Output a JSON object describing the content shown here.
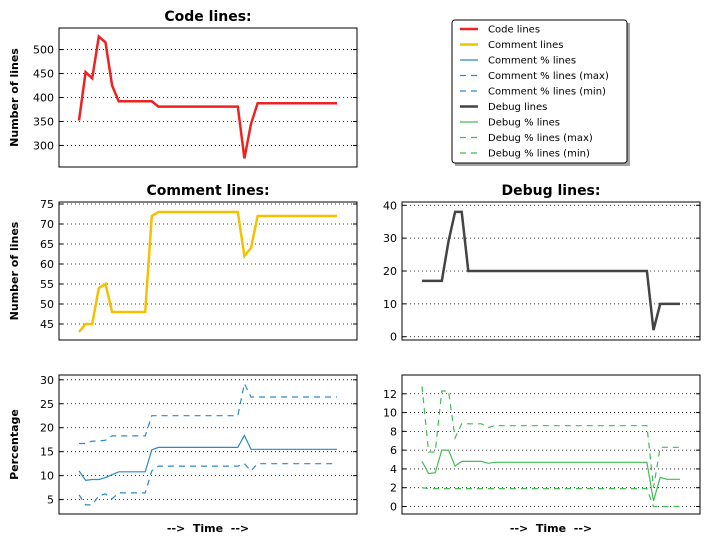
{
  "legend": {
    "entries": [
      {
        "label": "Code lines",
        "color": "#ee2222",
        "style": "solid",
        "width": 2.5
      },
      {
        "label": "Comment lines",
        "color": "#f5c000",
        "style": "solid",
        "width": 2.5
      },
      {
        "label": "Comment % lines",
        "color": "#2b8ac8",
        "style": "solid",
        "width": 1.2
      },
      {
        "label": "Comment % lines (max)",
        "color": "#2b8ac8",
        "style": "dashed",
        "width": 1.2
      },
      {
        "label": "Comment % lines (min)",
        "color": "#2b8ac8",
        "style": "dashed",
        "width": 1.2
      },
      {
        "label": "Debug lines",
        "color": "#444444",
        "style": "solid",
        "width": 2.5
      },
      {
        "label": "Debug % lines",
        "color": "#44bb55",
        "style": "solid",
        "width": 1.2
      },
      {
        "label": "Debug % lines (max)",
        "color": "#44bb55",
        "style": "dashed",
        "width": 1.2
      },
      {
        "label": "Debug % lines (min)",
        "color": "#44bb55",
        "style": "dashed",
        "width": 1.2
      }
    ]
  },
  "chart_data": [
    {
      "id": "code",
      "type": "line",
      "title": "Code lines:",
      "ylabel": "Number of lines",
      "xlabel": "",
      "ylim": [
        255,
        545
      ],
      "yticks": [
        300,
        350,
        400,
        450,
        500
      ],
      "grid": "horizontal dotted",
      "x": [
        0,
        1,
        2,
        3,
        4,
        5,
        6,
        7,
        8,
        9,
        10,
        11,
        12,
        13,
        14,
        15,
        16,
        17,
        18,
        19,
        20,
        21,
        22,
        23,
        24,
        25,
        26,
        27,
        28,
        29,
        30,
        31,
        32,
        33,
        34,
        35,
        36,
        37,
        38,
        39
      ],
      "series": [
        {
          "name": "Code lines",
          "color": "#ee2222",
          "style": "solid",
          "values": [
            352,
            453,
            440,
            527,
            515,
            425,
            392,
            392,
            392,
            392,
            392,
            392,
            381,
            381,
            381,
            381,
            381,
            381,
            381,
            381,
            381,
            381,
            381,
            381,
            381,
            273,
            345,
            388,
            388,
            388,
            388,
            388,
            388,
            388,
            388,
            388,
            388,
            388,
            388,
            388
          ]
        }
      ]
    },
    {
      "id": "comment",
      "type": "line",
      "title": "Comment lines:",
      "ylabel": "Number of lines",
      "xlabel": "",
      "ylim": [
        41,
        75.5
      ],
      "yticks": [
        45,
        50,
        55,
        60,
        65,
        70,
        75
      ],
      "grid": "horizontal dotted",
      "x": [
        0,
        1,
        2,
        3,
        4,
        5,
        6,
        7,
        8,
        9,
        10,
        11,
        12,
        13,
        14,
        15,
        16,
        17,
        18,
        19,
        20,
        21,
        22,
        23,
        24,
        25,
        26,
        27,
        28,
        29,
        30,
        31,
        32,
        33,
        34,
        35,
        36,
        37,
        38,
        39
      ],
      "series": [
        {
          "name": "Comment lines",
          "color": "#f5c000",
          "style": "solid",
          "values": [
            43,
            45,
            45,
            54,
            55,
            48,
            48,
            48,
            48,
            48,
            48,
            72,
            73,
            73,
            73,
            73,
            73,
            73,
            73,
            73,
            73,
            73,
            73,
            73,
            73,
            62,
            64,
            72,
            72,
            72,
            72,
            72,
            72,
            72,
            72,
            72,
            72,
            72,
            72,
            72
          ]
        }
      ]
    },
    {
      "id": "commentpct",
      "type": "line",
      "title": "",
      "ylabel": "Percentage",
      "xlabel": "-->  Time  -->",
      "ylim": [
        2,
        31
      ],
      "yticks": [
        5,
        10,
        15,
        20,
        25,
        30
      ],
      "grid": "horizontal dotted",
      "x": [
        0,
        1,
        2,
        3,
        4,
        5,
        6,
        7,
        8,
        9,
        10,
        11,
        12,
        13,
        14,
        15,
        16,
        17,
        18,
        19,
        20,
        21,
        22,
        23,
        24,
        25,
        26,
        27,
        28,
        29,
        30,
        31,
        32,
        33,
        34,
        35,
        36,
        37,
        38,
        39
      ],
      "series": [
        {
          "name": "Comment % lines",
          "color": "#2b8ac8",
          "style": "solid",
          "values": [
            11,
            9,
            9.2,
            9.2,
            9.6,
            10.2,
            10.8,
            10.8,
            10.8,
            10.8,
            10.8,
            15.4,
            15.9,
            15.9,
            15.9,
            15.9,
            15.9,
            15.9,
            15.9,
            15.9,
            15.9,
            15.9,
            15.9,
            15.9,
            15.9,
            18.4,
            15.5,
            15.5,
            15.5,
            15.5,
            15.5,
            15.5,
            15.5,
            15.5,
            15.5,
            15.5,
            15.5,
            15.5,
            15.5,
            15.5
          ]
        },
        {
          "name": "Comment % lines (max)",
          "color": "#2b8ac8",
          "style": "dashed",
          "values": [
            16.7,
            16.7,
            17.2,
            17.2,
            17.4,
            18.3,
            18.3,
            18.3,
            18.3,
            18.3,
            18.3,
            22.5,
            22.5,
            22.5,
            22.5,
            22.5,
            22.5,
            22.5,
            22.5,
            22.5,
            22.5,
            22.5,
            22.5,
            22.5,
            22.5,
            29.2,
            26.4,
            26.4,
            26.4,
            26.4,
            26.4,
            26.4,
            26.4,
            26.4,
            26.4,
            26.4,
            26.4,
            26.4,
            26.4,
            26.4
          ]
        },
        {
          "name": "Comment % lines (min)",
          "color": "#2b8ac8",
          "style": "dashed",
          "values": [
            6,
            3.9,
            3.9,
            5.8,
            6.2,
            5.2,
            6.4,
            6.4,
            6.4,
            6.4,
            6.4,
            11,
            12,
            12,
            12,
            12,
            12,
            12,
            12,
            12,
            12,
            12,
            12,
            12,
            12,
            12.5,
            11,
            12.5,
            12.5,
            12.5,
            12.5,
            12.5,
            12.5,
            12.5,
            12.5,
            12.5,
            12.5,
            12.5,
            12.5,
            12.5
          ]
        }
      ]
    },
    {
      "id": "debug",
      "type": "line",
      "title": "Debug lines:",
      "ylabel": "",
      "xlabel": "",
      "ylim": [
        -1,
        41
      ],
      "yticks": [
        0,
        10,
        20,
        30,
        40
      ],
      "grid": "horizontal dotted",
      "x": [
        0,
        1,
        2,
        3,
        4,
        5,
        6,
        7,
        8,
        9,
        10,
        11,
        12,
        13,
        14,
        15,
        16,
        17,
        18,
        19,
        20,
        21,
        22,
        23,
        24,
        25,
        26,
        27,
        28,
        29,
        30,
        31,
        32,
        33,
        34,
        35,
        36,
        37,
        38,
        39
      ],
      "series": [
        {
          "name": "Debug lines",
          "color": "#444444",
          "style": "solid",
          "values": [
            17,
            17,
            17,
            17,
            29,
            38,
            38,
            20,
            20,
            20,
            20,
            20,
            20,
            20,
            20,
            20,
            20,
            20,
            20,
            20,
            20,
            20,
            20,
            20,
            20,
            20,
            20,
            20,
            20,
            20,
            20,
            20,
            20,
            20,
            20,
            2,
            10,
            10,
            10,
            10
          ]
        }
      ]
    },
    {
      "id": "debugpct",
      "type": "line",
      "title": "",
      "ylabel": "",
      "xlabel": "-->  Time  -->",
      "ylim": [
        -0.8,
        14
      ],
      "yticks": [
        0,
        2,
        4,
        6,
        8,
        10,
        12
      ],
      "grid": "horizontal dotted",
      "x": [
        0,
        1,
        2,
        3,
        4,
        5,
        6,
        7,
        8,
        9,
        10,
        11,
        12,
        13,
        14,
        15,
        16,
        17,
        18,
        19,
        20,
        21,
        22,
        23,
        24,
        25,
        26,
        27,
        28,
        29,
        30,
        31,
        32,
        33,
        34,
        35,
        36,
        37,
        38,
        39
      ],
      "series": [
        {
          "name": "Debug % lines",
          "color": "#44bb55",
          "style": "solid",
          "values": [
            4.8,
            3.5,
            3.6,
            6,
            6,
            4.3,
            4.8,
            4.8,
            4.8,
            4.8,
            4.6,
            4.7,
            4.7,
            4.7,
            4.7,
            4.7,
            4.7,
            4.7,
            4.7,
            4.7,
            4.7,
            4.7,
            4.7,
            4.7,
            4.7,
            4.7,
            4.7,
            4.7,
            4.7,
            4.7,
            4.7,
            4.7,
            4.7,
            4.7,
            4.7,
            0.6,
            3.1,
            2.9,
            2.9,
            2.9
          ]
        },
        {
          "name": "Debug % lines (max)",
          "color": "#44bb55",
          "style": "dashed",
          "values": [
            12.8,
            5.8,
            5.8,
            12.3,
            12.3,
            7.3,
            8.8,
            8.8,
            8.8,
            8.8,
            8.4,
            8.6,
            8.6,
            8.6,
            8.6,
            8.6,
            8.6,
            8.6,
            8.6,
            8.6,
            8.6,
            8.6,
            8.6,
            8.6,
            8.6,
            8.6,
            8.6,
            8.6,
            8.6,
            8.6,
            8.6,
            8.6,
            8.6,
            8.6,
            8.6,
            2,
            6.3,
            6.3,
            6.3,
            6.3
          ]
        },
        {
          "name": "Debug % lines (min)",
          "color": "#44bb55",
          "style": "dashed",
          "values": [
            2,
            1.9,
            1.9,
            1.9,
            1.9,
            1.9,
            1.9,
            1.9,
            1.9,
            1.9,
            1.9,
            1.9,
            1.9,
            1.9,
            1.9,
            1.9,
            1.9,
            1.9,
            1.9,
            1.9,
            1.9,
            1.9,
            1.9,
            1.9,
            1.9,
            1.9,
            1.9,
            1.9,
            1.9,
            1.9,
            1.9,
            1.9,
            1.9,
            1.9,
            1.9,
            0,
            0,
            0,
            0,
            0
          ]
        }
      ]
    }
  ]
}
